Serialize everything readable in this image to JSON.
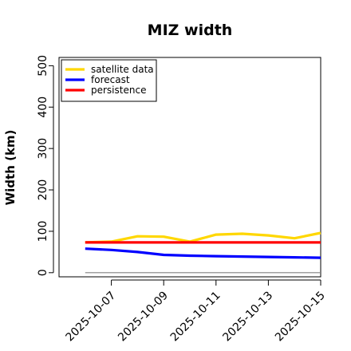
{
  "chart_data": {
    "type": "line",
    "title": "MIZ width",
    "xlabel": "",
    "ylabel": "Width (km)",
    "x": [
      "2025-10-06",
      "2025-10-07",
      "2025-10-08",
      "2025-10-09",
      "2025-10-10",
      "2025-10-11",
      "2025-10-12",
      "2025-10-13",
      "2025-10-14",
      "2025-10-15"
    ],
    "x_ticks": [
      "2025-10-07",
      "2025-10-09",
      "2025-10-11",
      "2025-10-13",
      "2025-10-15"
    ],
    "highlighted_tick": "2025-10-07",
    "xlim": [
      "2025-10-05",
      "2025-10-15"
    ],
    "ylim": [
      -10,
      520
    ],
    "y_ticks": [
      0,
      100,
      200,
      300,
      400,
      500
    ],
    "legend_position": "top-left",
    "grid": false,
    "zero_line": true,
    "series": [
      {
        "name": "satellite data",
        "color": "#FFD700",
        "values": [
          73,
          75,
          88,
          87,
          75,
          92,
          94,
          90,
          83,
          96
        ]
      },
      {
        "name": "forecast",
        "color": "#0000FF",
        "values": [
          58,
          55,
          50,
          43,
          41,
          40,
          39,
          38,
          37,
          36
        ]
      },
      {
        "name": "persistence",
        "color": "#FF0000",
        "values": [
          73,
          73,
          73,
          73,
          73,
          73,
          73,
          73,
          73,
          73
        ]
      }
    ],
    "highlight_color": "#228B22",
    "zero_line_color": "#808080"
  }
}
